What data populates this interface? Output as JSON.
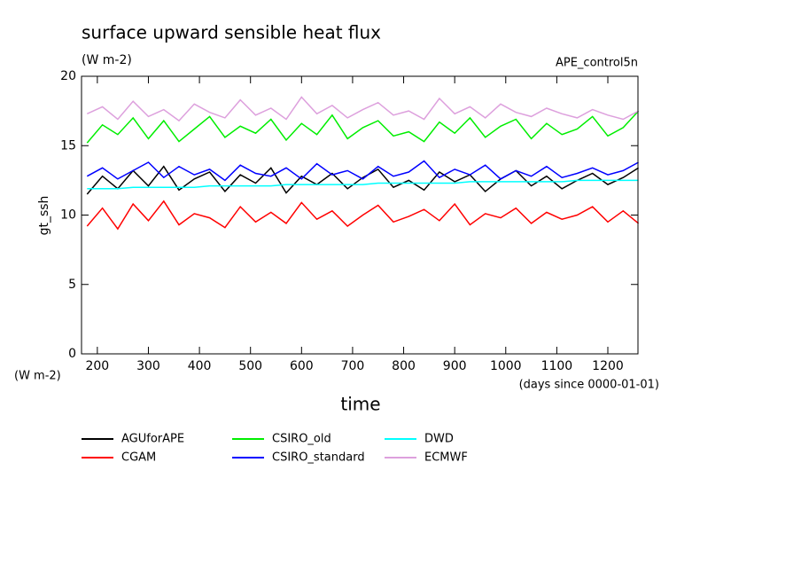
{
  "chart_data": {
    "type": "line",
    "title": "surface upward sensible heat flux",
    "units": "(W m-2)",
    "run_label": "APE_control5n",
    "y_label": "gt_ssh",
    "x_label": "time",
    "x_units": "(days since 0000-01-01)",
    "xlim": [
      169,
      1259
    ],
    "ylim": [
      0,
      20
    ],
    "xticks": [
      200,
      300,
      400,
      500,
      600,
      700,
      800,
      900,
      1000,
      1100,
      1200
    ],
    "yticks": [
      0,
      5,
      10,
      15,
      20
    ],
    "x": [
      180,
      210,
      240,
      270,
      300,
      330,
      360,
      390,
      420,
      450,
      480,
      510,
      540,
      570,
      600,
      630,
      660,
      690,
      720,
      750,
      780,
      810,
      840,
      870,
      900,
      930,
      960,
      990,
      1020,
      1050,
      1080,
      1110,
      1140,
      1170,
      1200,
      1230,
      1260
    ],
    "series": [
      {
        "name": "AGUforAPE",
        "color": "#000000",
        "values": [
          11.5,
          12.8,
          11.9,
          13.2,
          12.1,
          13.5,
          11.8,
          12.6,
          13.1,
          11.7,
          12.9,
          12.3,
          13.4,
          11.6,
          12.8,
          12.2,
          13.0,
          11.9,
          12.7,
          13.3,
          12.0,
          12.5,
          11.8,
          13.1,
          12.4,
          12.9,
          11.7,
          12.6,
          13.2,
          12.1,
          12.8,
          11.9,
          12.5,
          13.0,
          12.2,
          12.7,
          13.4
        ]
      },
      {
        "name": "CGAM",
        "color": "#ff0000",
        "values": [
          9.2,
          10.5,
          9.0,
          10.8,
          9.6,
          11.0,
          9.3,
          10.1,
          9.8,
          9.1,
          10.6,
          9.5,
          10.2,
          9.4,
          10.9,
          9.7,
          10.3,
          9.2,
          10.0,
          10.7,
          9.5,
          9.9,
          10.4,
          9.6,
          10.8,
          9.3,
          10.1,
          9.8,
          10.5,
          9.4,
          10.2,
          9.7,
          10.0,
          10.6,
          9.5,
          10.3,
          9.4
        ]
      },
      {
        "name": "CSIRO_old",
        "color": "#00ee00",
        "values": [
          15.2,
          16.5,
          15.8,
          17.0,
          15.5,
          16.8,
          15.3,
          16.2,
          17.1,
          15.6,
          16.4,
          15.9,
          16.9,
          15.4,
          16.6,
          15.8,
          17.2,
          15.5,
          16.3,
          16.8,
          15.7,
          16.0,
          15.3,
          16.7,
          15.9,
          17.0,
          15.6,
          16.4,
          16.9,
          15.5,
          16.6,
          15.8,
          16.2,
          17.1,
          15.7,
          16.3,
          17.5
        ]
      },
      {
        "name": "CSIRO_standard",
        "color": "#0000ff",
        "values": [
          12.8,
          13.4,
          12.6,
          13.2,
          13.8,
          12.7,
          13.5,
          12.9,
          13.3,
          12.5,
          13.6,
          13.0,
          12.8,
          13.4,
          12.6,
          13.7,
          12.9,
          13.2,
          12.6,
          13.5,
          12.8,
          13.1,
          13.9,
          12.7,
          13.3,
          12.9,
          13.6,
          12.6,
          13.2,
          12.8,
          13.5,
          12.7,
          13.0,
          13.4,
          12.9,
          13.2,
          13.8
        ]
      },
      {
        "name": "DWD",
        "color": "#00ffff",
        "values": [
          11.9,
          11.9,
          11.9,
          12.0,
          12.0,
          12.0,
          12.0,
          12.0,
          12.1,
          12.1,
          12.1,
          12.1,
          12.1,
          12.2,
          12.2,
          12.2,
          12.2,
          12.2,
          12.2,
          12.3,
          12.3,
          12.3,
          12.3,
          12.3,
          12.3,
          12.4,
          12.4,
          12.4,
          12.4,
          12.4,
          12.4,
          12.4,
          12.5,
          12.5,
          12.5,
          12.5,
          12.5
        ]
      },
      {
        "name": "ECMWF",
        "color": "#dda0dd",
        "values": [
          17.3,
          17.8,
          16.9,
          18.2,
          17.1,
          17.6,
          16.8,
          18.0,
          17.4,
          17.0,
          18.3,
          17.2,
          17.7,
          16.9,
          18.5,
          17.3,
          17.9,
          17.0,
          17.6,
          18.1,
          17.2,
          17.5,
          16.9,
          18.4,
          17.3,
          17.8,
          17.0,
          18.0,
          17.4,
          17.1,
          17.7,
          17.3,
          17.0,
          17.6,
          17.2,
          16.9,
          17.5
        ]
      }
    ]
  }
}
